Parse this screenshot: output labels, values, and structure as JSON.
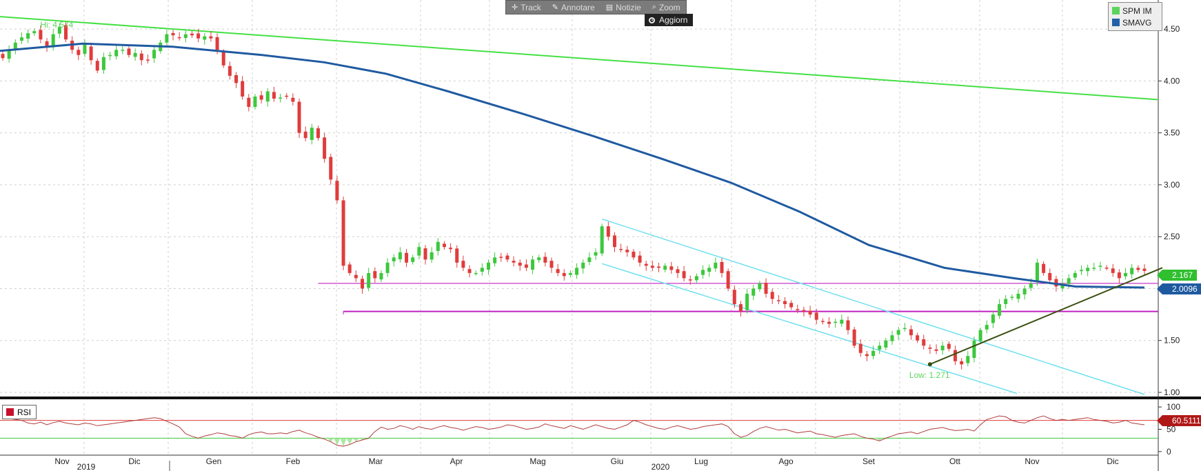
{
  "toolbar": {
    "items": [
      {
        "label": "Track",
        "icon": "crosshair-icon"
      },
      {
        "label": "Annotare",
        "icon": "pencil-icon"
      },
      {
        "label": "Notizie",
        "icon": "news-icon"
      },
      {
        "label": "Zoom",
        "icon": "magnifier-icon"
      }
    ],
    "refresh_label": "Aggiorn"
  },
  "legend": {
    "items": [
      {
        "label": "SPM IM",
        "color": "#5cd45c"
      },
      {
        "label": "SMAVG",
        "color": "#2060a8"
      }
    ]
  },
  "rsi_legend": {
    "label": "RSI",
    "color": "#c8102e"
  },
  "colors": {
    "up": "#3cc83c",
    "down": "#e03c3c",
    "trend": "#44e044",
    "smavg": "#1f5aa0",
    "channel": "#6fe0ee",
    "support": "#c020c0",
    "uptrend": "#3a4f10",
    "rsi": "#b03a3a"
  },
  "chart_data": {
    "type": "candlestick",
    "title": "",
    "series": [
      {
        "name": "SPM IM",
        "type": "candlestick"
      },
      {
        "name": "SMAVG",
        "type": "line",
        "last_value": 2.0096
      }
    ],
    "y_ticks": [
      "4.50",
      "4.00",
      "3.50",
      "3.00",
      "2.50",
      "2.00",
      "1.50",
      "1.00"
    ],
    "ylim": [
      0.98,
      4.78
    ],
    "x_month_labels": [
      "Nov",
      "Dic",
      "Gen",
      "Feb",
      "Mar",
      "Apr",
      "Mag",
      "Giu",
      "Lug",
      "Ago",
      "Set",
      "Ott",
      "Nov",
      "Dic"
    ],
    "x_year_labels": [
      "2019",
      "2020"
    ],
    "last_price": "2.167",
    "smavg_last": "2.0096",
    "annotations": {
      "high": "Hi: 4.574",
      "low": "Low: 1.271"
    },
    "high_value": 4.574,
    "low_value": 1.271,
    "support_levels": [
      2.05,
      1.78
    ],
    "long_trendline": {
      "from": 4.62,
      "to": 3.82
    },
    "channel_upper": {
      "from": 2.67,
      "to": 0.98
    },
    "channel_lower": {
      "from": 2.24,
      "to": 0.99
    },
    "uptrend_line": {
      "from": 1.271,
      "to": 2.2
    },
    "closes": [
      4.22,
      4.3,
      4.37,
      4.42,
      4.46,
      4.48,
      4.4,
      4.33,
      4.45,
      4.52,
      4.4,
      4.3,
      4.25,
      4.35,
      4.2,
      4.1,
      4.23,
      4.25,
      4.3,
      4.3,
      4.25,
      4.27,
      4.2,
      4.2,
      4.3,
      4.37,
      4.45,
      4.44,
      4.42,
      4.45,
      4.44,
      4.41,
      4.43,
      4.41,
      4.3,
      4.15,
      4.05,
      3.98,
      3.85,
      3.75,
      3.85,
      3.82,
      3.9,
      3.83,
      3.84,
      3.85,
      3.8,
      3.5,
      3.45,
      3.55,
      3.45,
      3.25,
      3.05,
      2.85,
      2.22,
      2.15,
      2.1,
      2.0,
      2.15,
      2.1,
      2.15,
      2.25,
      2.3,
      2.35,
      2.25,
      2.3,
      2.4,
      2.28,
      2.35,
      2.45,
      2.4,
      2.38,
      2.25,
      2.2,
      2.15,
      2.15,
      2.2,
      2.25,
      2.3,
      2.3,
      2.28,
      2.25,
      2.22,
      2.2,
      2.28,
      2.3,
      2.25,
      2.2,
      2.15,
      2.12,
      2.15,
      2.2,
      2.25,
      2.3,
      2.35,
      2.6,
      2.5,
      2.4,
      2.38,
      2.35,
      2.3,
      2.25,
      2.22,
      2.2,
      2.2,
      2.22,
      2.18,
      2.15,
      2.1,
      2.08,
      2.12,
      2.18,
      2.2,
      2.25,
      2.15,
      2.0,
      1.85,
      1.78,
      1.95,
      2.0,
      2.05,
      1.95,
      1.9,
      1.88,
      1.85,
      1.82,
      1.8,
      1.78,
      1.75,
      1.7,
      1.68,
      1.66,
      1.68,
      1.7,
      1.6,
      1.45,
      1.38,
      1.35,
      1.4,
      1.45,
      1.5,
      1.55,
      1.6,
      1.62,
      1.55,
      1.5,
      1.45,
      1.42,
      1.4,
      1.45,
      1.42,
      1.3,
      1.27,
      1.35,
      1.5,
      1.6,
      1.65,
      1.75,
      1.85,
      1.9,
      1.92,
      1.95,
      2.0,
      2.05,
      2.25,
      2.15,
      2.08,
      2.02,
      2.05,
      2.1,
      2.15,
      2.18,
      2.2,
      2.2,
      2.22,
      2.2,
      2.15,
      2.1,
      2.15,
      2.2,
      2.18,
      2.17
    ],
    "rsi": {
      "name": "RSI",
      "last_value": "60.5111",
      "y_ticks": [
        "100",
        "50",
        "0"
      ],
      "ylim": [
        -8,
        108
      ],
      "levels": [
        70,
        30
      ],
      "values": [
        78,
        74,
        72,
        70,
        64,
        62,
        66,
        60,
        65,
        68,
        64,
        62,
        60,
        64,
        62,
        58,
        60,
        62,
        64,
        66,
        68,
        70,
        72,
        74,
        76,
        74,
        68,
        62,
        55,
        40,
        34,
        30,
        35,
        38,
        42,
        40,
        36,
        34,
        30,
        38,
        42,
        44,
        40,
        40,
        42,
        40,
        45,
        48,
        42,
        38,
        32,
        28,
        22,
        14,
        12,
        16,
        22,
        26,
        30,
        45,
        55,
        50,
        52,
        58,
        55,
        50,
        56,
        52,
        50,
        55,
        58,
        54,
        52,
        48,
        52,
        56,
        54,
        50,
        52,
        55,
        60,
        58,
        54,
        50,
        52,
        55,
        62,
        58,
        55,
        52,
        58,
        54,
        50,
        55,
        60,
        56,
        52,
        50,
        55,
        60,
        70,
        66,
        60,
        56,
        52,
        50,
        55,
        58,
        54,
        50,
        52,
        56,
        58,
        60,
        62,
        56,
        40,
        32,
        36,
        45,
        52,
        56,
        52,
        48,
        50,
        46,
        42,
        44,
        46,
        40,
        38,
        35,
        32,
        36,
        38,
        40,
        34,
        30,
        28,
        24,
        30,
        35,
        40,
        42,
        44,
        40,
        45,
        50,
        52,
        54,
        50,
        47,
        48,
        50,
        46,
        60,
        72,
        76,
        80,
        78,
        70,
        66,
        64,
        70,
        76,
        80,
        74,
        70,
        72,
        70,
        72,
        74,
        76,
        72,
        70,
        68,
        64,
        66,
        70,
        64,
        62,
        60
      ]
    }
  }
}
